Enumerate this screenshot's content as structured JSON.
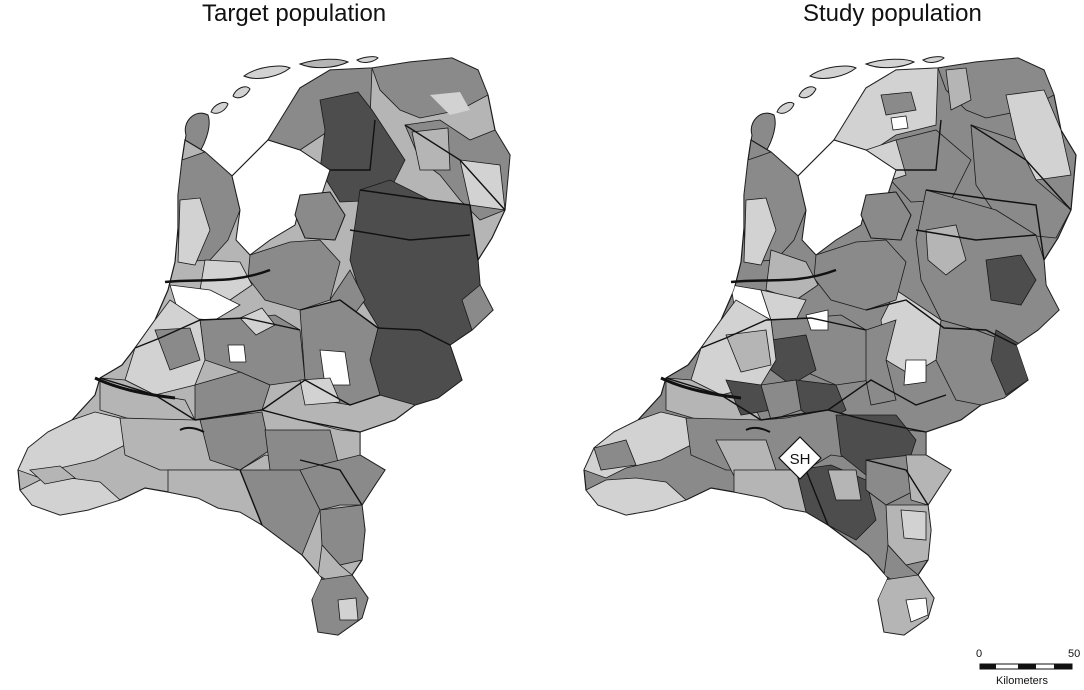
{
  "maps": [
    {
      "id": "target",
      "title": "Target population"
    },
    {
      "id": "study",
      "title": "Study population",
      "marker_label": "SH"
    }
  ],
  "scale_bar": {
    "min_label": "0",
    "max_label": "50",
    "unit_label": "Kilometers"
  },
  "colors": {
    "very_dark": "#4d4d4d",
    "dark": "#8a8a8a",
    "medium": "#b5b5b5",
    "light": "#d2d2d2",
    "white": "#ffffff",
    "border": "#1a1a1a"
  }
}
